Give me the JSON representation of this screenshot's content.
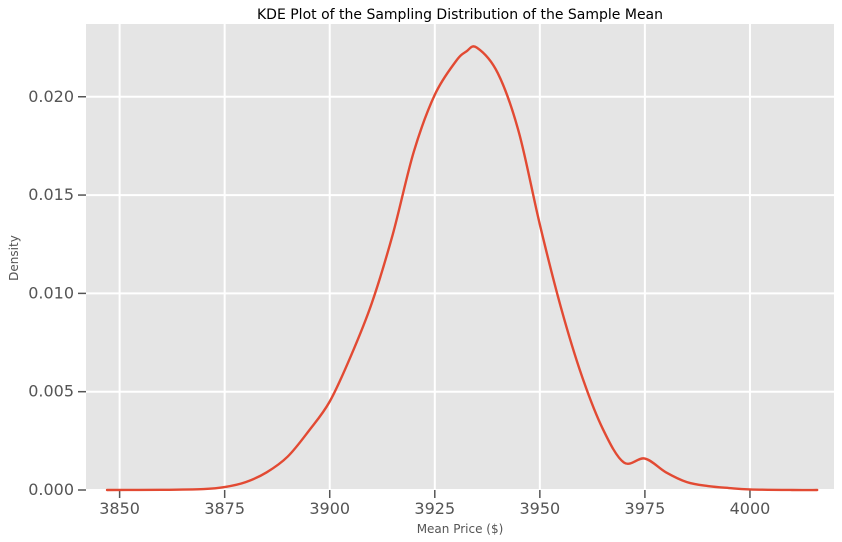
{
  "chart_data": {
    "type": "line",
    "title": "KDE Plot of the Sampling Distribution of the Sample Mean",
    "xlabel": "Mean Price ($)",
    "ylabel": "Density",
    "xlim": [
      3842,
      4020
    ],
    "ylim": [
      0,
      0.0237
    ],
    "x_ticks": [
      3850,
      3875,
      3900,
      3925,
      3950,
      3975,
      4000
    ],
    "y_ticks": [
      0.0,
      0.005,
      0.01,
      0.015,
      0.02
    ],
    "x_tick_labels": [
      "3850",
      "3875",
      "3900",
      "3925",
      "3950",
      "3975",
      "4000"
    ],
    "y_tick_labels": [
      "0.000",
      "0.005",
      "0.010",
      "0.015",
      "0.020"
    ],
    "grid": true,
    "series": [
      {
        "color": "#e24a33",
        "x": [
          3847,
          3860,
          3870,
          3875,
          3880,
          3885,
          3890,
          3895,
          3900,
          3905,
          3910,
          3915,
          3920,
          3925,
          3930,
          3932.5,
          3935,
          3940,
          3945,
          3950,
          3955,
          3960,
          3965,
          3970,
          3975,
          3980,
          3985,
          3990,
          3995,
          4000,
          4010,
          4016
        ],
        "y": [
          0.0,
          1e-05,
          5e-05,
          0.00015,
          0.0004,
          0.0009,
          0.0017,
          0.003,
          0.0045,
          0.0068,
          0.0095,
          0.013,
          0.0172,
          0.0201,
          0.0218,
          0.0223,
          0.0225,
          0.0212,
          0.0182,
          0.0135,
          0.0093,
          0.0058,
          0.0031,
          0.0014,
          0.0016,
          0.0009,
          0.0004,
          0.0002,
          0.0001,
          3e-05,
          0.0,
          0.0
        ]
      }
    ]
  }
}
